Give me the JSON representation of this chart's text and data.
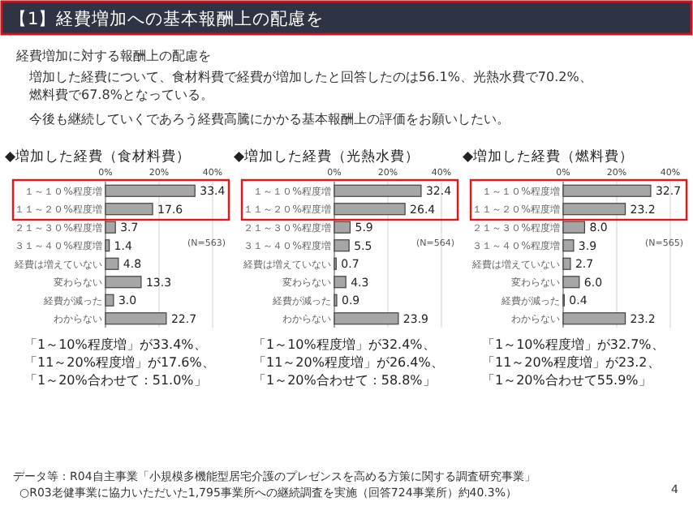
{
  "chart_data": [
    {
      "type": "other",
      "title": "【1】経費増加への基本報酬上の配慮を",
      "annotations": [
        "経費増加に対する報酬上の配慮を",
        "増加した経費について、食材料費で経費が増加したと回答したのは56.1%、光熱水費で70.2%、",
        "燃料費で67.8%となっている。",
        "今後も継続していくであろう経費高騰にかかる基本報酬上の評価をお願いしたい。"
      ]
    },
    {
      "type": "bar",
      "orientation": "horizontal",
      "title": "◆増加した経費（食材料費）",
      "categories": [
        "１～１０%程度増",
        "１１～２０%程度増",
        "２１～３０%程度増",
        "３１～４０%程度増",
        "経費は増えていない",
        "変わらない",
        "経費が減った",
        "わからない"
      ],
      "values": [
        33.4,
        17.6,
        3.7,
        1.4,
        4.8,
        13.3,
        3.0,
        22.7
      ],
      "value_labels": [
        "33.4",
        "17.6",
        "3.7",
        "1.4",
        "4.8",
        "13.3",
        "3.0",
        "22.7"
      ],
      "color": "#a6a6a6",
      "xlim": [
        0,
        40
      ],
      "xticks": [
        {
          "value": 0,
          "label": "0%"
        },
        {
          "value": 20,
          "label": "20%"
        },
        {
          "value": 40,
          "label": "40%"
        }
      ],
      "grid": "x",
      "annotations": [
        "(N=563)",
        "「1～10%程度増」が33.4%、",
        "「11～20%程度増」が17.6%、",
        "「1～20%合わせて：51.0%」"
      ]
    },
    {
      "type": "bar",
      "orientation": "horizontal",
      "title": "◆増加した経費（光熱水費）",
      "categories": [
        "１～１０%程度増",
        "１１～２０%程度増",
        "２１～３０%程度増",
        "３１～４０%程度増",
        "経費は増えていない",
        "変わらない",
        "経費が減った",
        "わからない"
      ],
      "values": [
        32.4,
        26.4,
        5.9,
        5.5,
        0.7,
        4.3,
        0.9,
        23.9
      ],
      "value_labels": [
        "32.4",
        "26.4",
        "5.9",
        "5.5",
        "0.7",
        "4.3",
        "0.9",
        "23.9"
      ],
      "color": "#a6a6a6",
      "xlim": [
        0,
        40
      ],
      "xticks": [
        {
          "value": 0,
          "label": "0%"
        },
        {
          "value": 20,
          "label": "20%"
        },
        {
          "value": 40,
          "label": "40%"
        }
      ],
      "grid": "x",
      "annotations": [
        "(N=564)",
        "「1～10%程度増」が32.4%、",
        "「11～20%程度増」が26.4%、",
        "「1～20%合わせて：58.8%」"
      ]
    },
    {
      "type": "bar",
      "orientation": "horizontal",
      "title": "◆増加した経費（燃料費）",
      "categories": [
        "１～１０%程度増",
        "１１～２０%程度増",
        "２１～３０%程度増",
        "３１～４０%程度増",
        "経費は増えていない",
        "変わらない",
        "経費が減った",
        "わからない"
      ],
      "values": [
        32.7,
        23.2,
        8.0,
        3.9,
        2.7,
        6.0,
        0.4,
        23.2
      ],
      "value_labels": [
        "32.7",
        "23.2",
        "8.0",
        "3.9",
        "2.7",
        "6.0",
        "0.4",
        "23.2"
      ],
      "color": "#a6a6a6",
      "xlim": [
        0,
        40
      ],
      "xticks": [
        {
          "value": 0,
          "label": "0%"
        },
        {
          "value": 20,
          "label": "20%"
        },
        {
          "value": 40,
          "label": "40%"
        }
      ],
      "grid": "x",
      "annotations": [
        "(N=565)",
        "「1～10%程度増」が32.7%、",
        "「11～20%程度増」が23.2、",
        "「1～20%合わせて55.9%」"
      ]
    },
    {
      "type": "other",
      "annotations": [
        "データ等：R04自主事業「小規模多機能型居宅介護のプレゼンスを高める方策に関する調査研究事業」",
        "○R03老健事業に協力いただいた1,795事業所への継続調査を実施（回答724事業所）約40.3%）",
        "4"
      ]
    }
  ]
}
